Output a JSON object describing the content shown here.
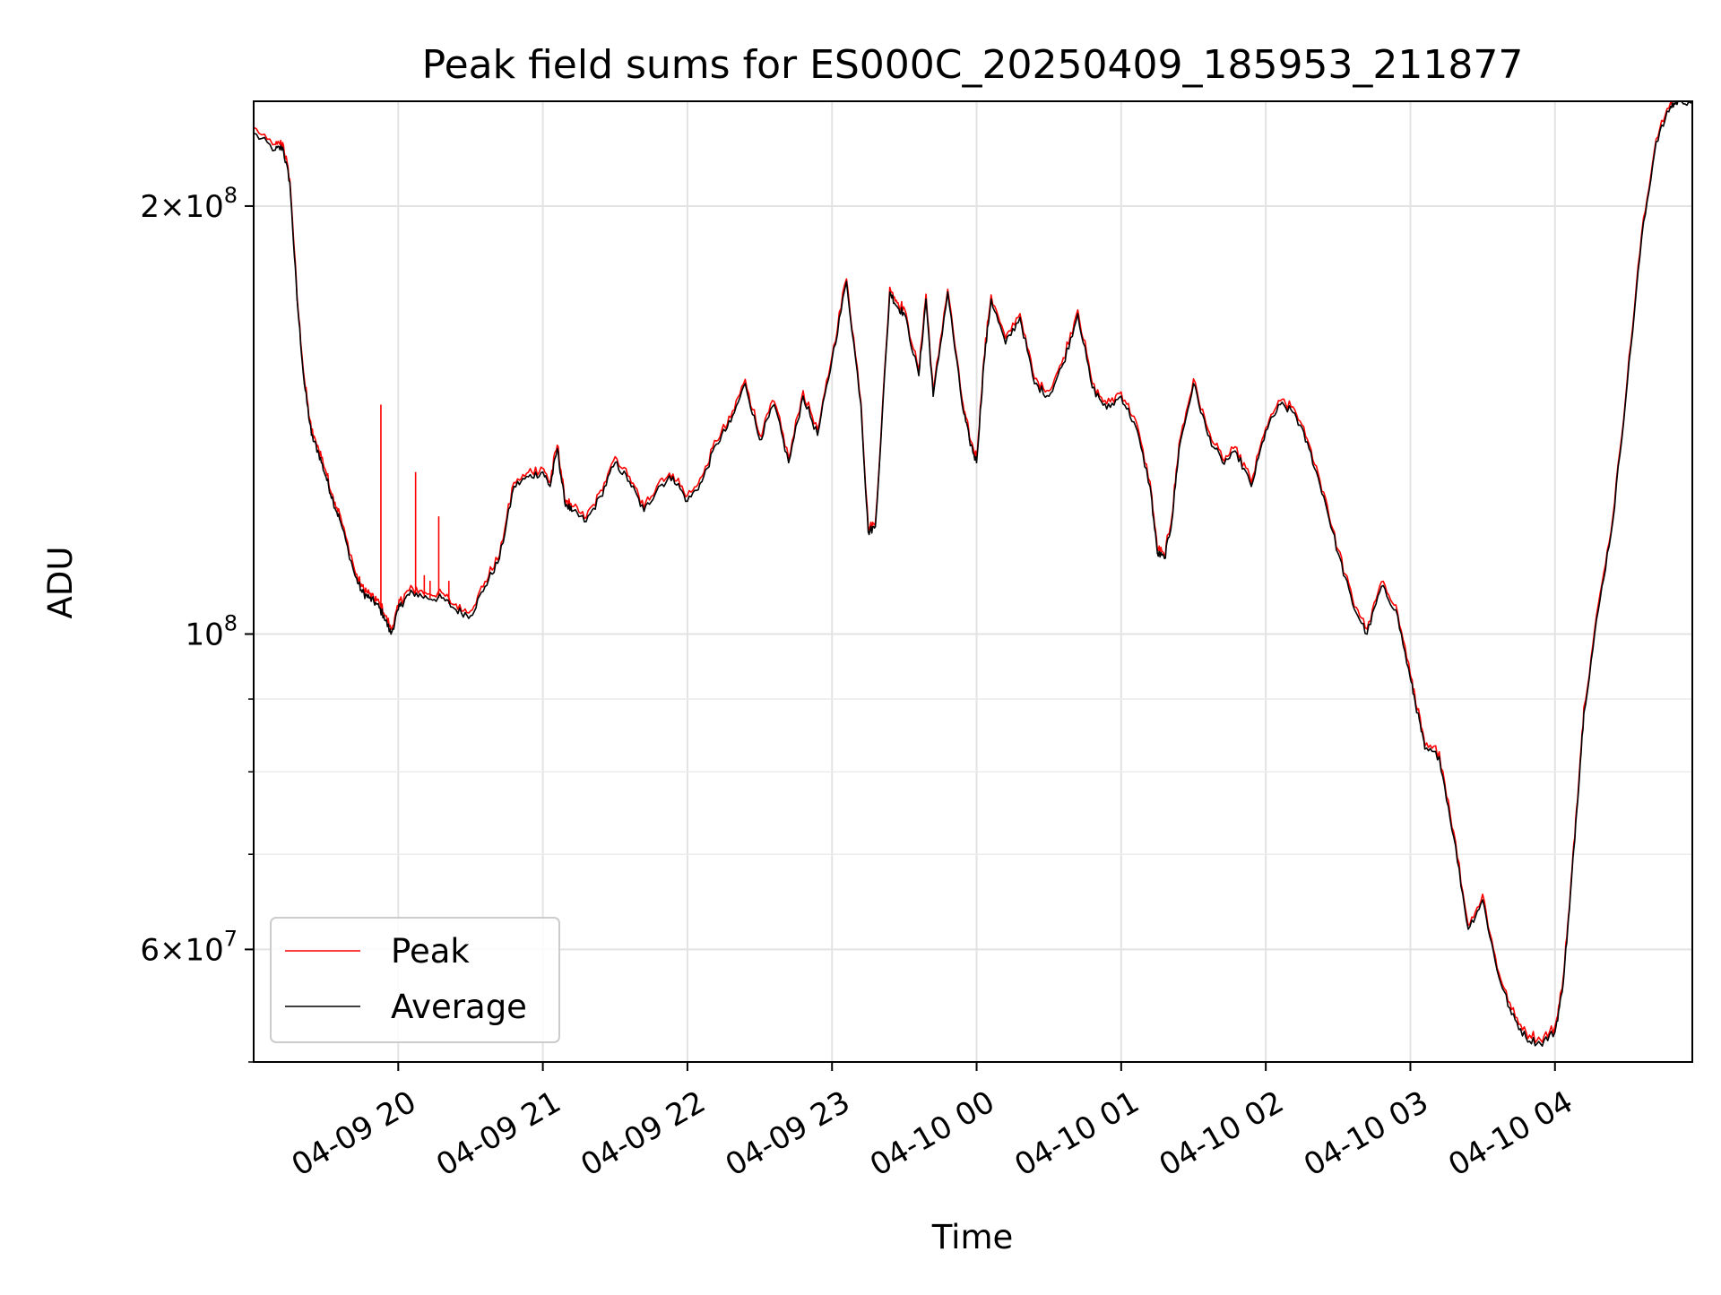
{
  "chart_data": {
    "type": "line",
    "title": "Peak field sums for ES000C_20250409_185953_211877",
    "xlabel": "Time",
    "ylabel": "ADU",
    "yscale": "log",
    "ylim": [
      50000000,
      237000000
    ],
    "xlim_hours": [
      -1.0,
      8.95
    ],
    "x_reference": "2025-04-09 20:00",
    "grid": true,
    "legend_position": "lower-left",
    "x_ticks": [
      {
        "hours": 0,
        "label": "04-09 20"
      },
      {
        "hours": 1,
        "label": "04-09 21"
      },
      {
        "hours": 2,
        "label": "04-09 22"
      },
      {
        "hours": 3,
        "label": "04-09 23"
      },
      {
        "hours": 4,
        "label": "04-10 00"
      },
      {
        "hours": 5,
        "label": "04-10 01"
      },
      {
        "hours": 6,
        "label": "04-10 02"
      },
      {
        "hours": 7,
        "label": "04-10 03"
      },
      {
        "hours": 8,
        "label": "04-10 04"
      }
    ],
    "y_major_ticks": [
      {
        "value": 200000000,
        "mantissa": "2",
        "base": "10",
        "exponent": "8"
      },
      {
        "value": 100000000,
        "mantissa": "",
        "base": "10",
        "exponent": "8"
      },
      {
        "value": 60000000,
        "mantissa": "6",
        "base": "10",
        "exponent": "7"
      }
    ],
    "y_minor_ticks": [
      50000000,
      70000000,
      80000000,
      90000000
    ],
    "series": [
      {
        "name": "Peak",
        "color": "#ff0000",
        "spikes": [
          {
            "x": -0.12,
            "y": 145000000
          },
          {
            "x": 0.12,
            "y": 130000000
          },
          {
            "x": 0.28,
            "y": 121000000
          },
          {
            "x": 0.18,
            "y": 110000000
          },
          {
            "x": 0.22,
            "y": 109000000
          },
          {
            "x": 0.35,
            "y": 109000000
          }
        ]
      },
      {
        "name": "Average",
        "color": "#000000",
        "x": [
          -1.0,
          -0.85,
          -0.8,
          -0.75,
          -0.7,
          -0.65,
          -0.6,
          -0.55,
          -0.5,
          -0.45,
          -0.4,
          -0.3,
          -0.25,
          -0.2,
          -0.15,
          -0.1,
          -0.05,
          0.0,
          0.05,
          0.1,
          0.2,
          0.3,
          0.4,
          0.5,
          0.6,
          0.7,
          0.8,
          0.9,
          1.0,
          1.05,
          1.1,
          1.15,
          1.2,
          1.3,
          1.4,
          1.5,
          1.6,
          1.7,
          1.8,
          1.9,
          2.0,
          2.1,
          2.2,
          2.3,
          2.4,
          2.5,
          2.6,
          2.7,
          2.8,
          2.9,
          3.0,
          3.1,
          3.2,
          3.25,
          3.3,
          3.4,
          3.45,
          3.5,
          3.6,
          3.65,
          3.7,
          3.8,
          3.9,
          3.95,
          4.0,
          4.05,
          4.1,
          4.2,
          4.3,
          4.4,
          4.5,
          4.6,
          4.7,
          4.8,
          4.9,
          5.0,
          5.1,
          5.2,
          5.25,
          5.3,
          5.35,
          5.4,
          5.5,
          5.6,
          5.7,
          5.8,
          5.9,
          6.0,
          6.1,
          6.2,
          6.3,
          6.4,
          6.5,
          6.6,
          6.7,
          6.8,
          6.9,
          7.0,
          7.05,
          7.1,
          7.2,
          7.3,
          7.4,
          7.5,
          7.6,
          7.7,
          7.8,
          7.9,
          8.0,
          8.05,
          8.1,
          8.15,
          8.2,
          8.3,
          8.4,
          8.5,
          8.6,
          8.7,
          8.8,
          8.85,
          8.95
        ],
        "values": [
          225000000,
          219000000,
          220000000,
          208000000,
          172000000,
          150000000,
          138000000,
          134000000,
          129000000,
          124000000,
          120000000,
          110000000,
          107000000,
          106000000,
          105000000,
          103000000,
          100000000,
          104000000,
          106000000,
          107000000,
          106000000,
          106000000,
          104000000,
          103000000,
          108000000,
          113000000,
          127000000,
          129000000,
          130000000,
          127000000,
          135000000,
          124000000,
          122000000,
          120000000,
          125000000,
          132000000,
          128000000,
          122000000,
          127000000,
          129000000,
          124000000,
          128000000,
          136000000,
          141000000,
          150000000,
          137000000,
          145000000,
          132000000,
          147000000,
          138000000,
          156000000,
          177000000,
          145000000,
          118000000,
          119000000,
          174000000,
          170000000,
          168000000,
          152000000,
          172000000,
          147000000,
          174000000,
          145000000,
          137000000,
          132000000,
          155000000,
          172000000,
          160000000,
          167000000,
          150000000,
          147000000,
          155000000,
          168000000,
          149000000,
          144000000,
          147000000,
          140000000,
          127000000,
          114000000,
          113000000,
          120000000,
          135000000,
          150000000,
          138000000,
          132000000,
          134000000,
          127000000,
          139000000,
          145000000,
          143000000,
          135000000,
          125000000,
          114000000,
          105000000,
          100000000,
          108000000,
          104000000,
          93000000,
          88000000,
          83000000,
          82000000,
          72000000,
          62000000,
          65000000,
          58000000,
          54000000,
          52000000,
          51500000,
          52500000,
          56000000,
          64000000,
          75000000,
          88000000,
          104000000,
          120000000,
          150000000,
          190000000,
          222000000,
          235000000,
          237000000,
          237000000
        ]
      }
    ]
  }
}
